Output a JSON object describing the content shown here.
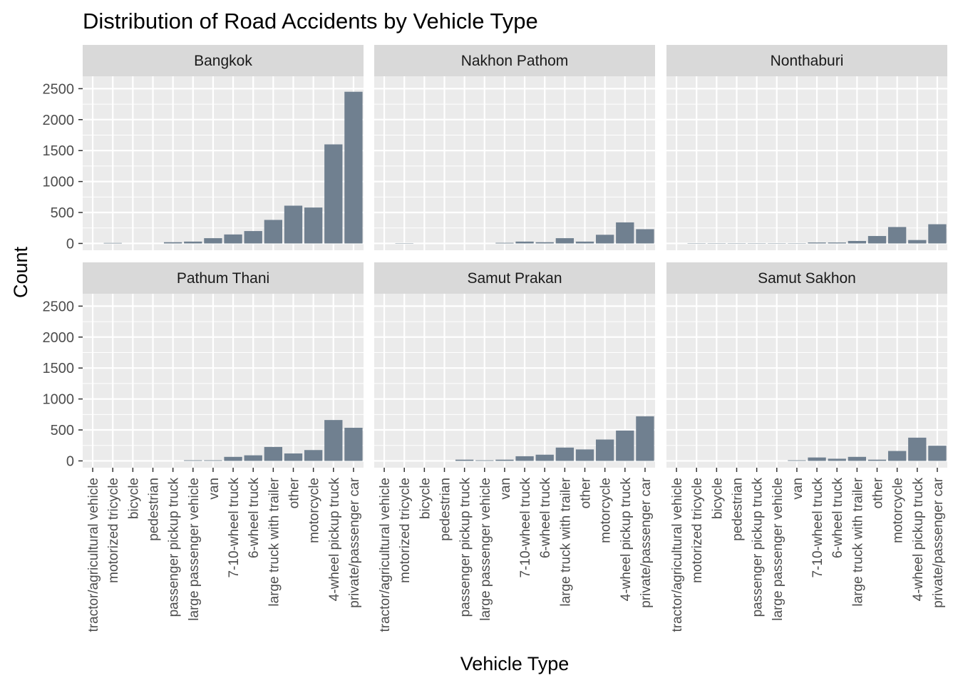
{
  "chart_data": {
    "type": "bar",
    "title": "Distribution of Road Accidents by Vehicle Type",
    "xlabel": "Vehicle Type",
    "ylabel": "Count",
    "ylim": [
      0,
      2500
    ],
    "yticks": [
      0,
      500,
      1000,
      1500,
      2000,
      2500
    ],
    "grid": true,
    "facet_layout": "2 rows x 3 columns",
    "categories": [
      "tractor/agricultural vehicle",
      "motorized tricycle",
      "bicycle",
      "pedestrian",
      "passenger pickup truck",
      "large passenger vehicle",
      "van",
      "7-10-wheel truck",
      "6-wheel truck",
      "large truck with trailer",
      "other",
      "motorcycle",
      "4-wheel pickup truck",
      "private/passenger car"
    ],
    "panels": [
      {
        "name": "Bangkok",
        "values": [
          0,
          8,
          0,
          0,
          20,
          30,
          85,
          145,
          200,
          380,
          610,
          580,
          1600,
          2450
        ]
      },
      {
        "name": "Nakhon Pathom",
        "values": [
          0,
          5,
          0,
          0,
          0,
          0,
          10,
          30,
          20,
          85,
          30,
          140,
          340,
          230
        ]
      },
      {
        "name": "Nonthaburi",
        "values": [
          0,
          5,
          5,
          5,
          5,
          5,
          5,
          15,
          15,
          40,
          120,
          265,
          55,
          310
        ]
      },
      {
        "name": "Pathum Thani",
        "values": [
          0,
          0,
          0,
          0,
          0,
          10,
          10,
          65,
          90,
          225,
          120,
          175,
          660,
          535
        ]
      },
      {
        "name": "Samut Prakan",
        "values": [
          0,
          0,
          0,
          0,
          20,
          10,
          20,
          75,
          100,
          215,
          185,
          345,
          490,
          720
        ]
      },
      {
        "name": "Samut Sakhon",
        "values": [
          0,
          0,
          0,
          0,
          0,
          0,
          10,
          55,
          35,
          65,
          20,
          160,
          375,
          245
        ]
      }
    ],
    "colors": {
      "bar": "#708090",
      "panel_bg": "#ebebeb",
      "strip_bg": "#d9d9d9",
      "grid_major": "#ffffff",
      "text": "#000000",
      "tick_text": "#4d4d4d",
      "tick_mark": "#333333"
    }
  }
}
